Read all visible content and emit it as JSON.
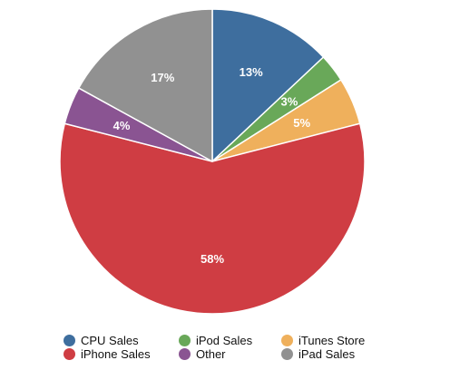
{
  "chart_data": {
    "type": "pie",
    "slices": [
      {
        "label": "CPU Sales",
        "value": 13,
        "display": "13%",
        "color": "#3E6E9E"
      },
      {
        "label": "iPod Sales",
        "value": 3,
        "display": "3%",
        "color": "#69A859"
      },
      {
        "label": "iTunes Store",
        "value": 5,
        "display": "5%",
        "color": "#EFB05C"
      },
      {
        "label": "iPhone Sales",
        "value": 58,
        "display": "58%",
        "color": "#CF3D43"
      },
      {
        "label": "Other",
        "value": 4,
        "display": "4%",
        "color": "#8A5492"
      },
      {
        "label": "iPad Sales",
        "value": 17,
        "display": "17%",
        "color": "#919191"
      }
    ],
    "legend": {
      "placement": "bottom",
      "columns": 3,
      "entries": [
        "CPU Sales",
        "iPod Sales",
        "iTunes Store",
        "iPhone Sales",
        "Other",
        "iPad Sales"
      ]
    },
    "start_angle": "12 o'clock",
    "direction": "clockwise"
  }
}
